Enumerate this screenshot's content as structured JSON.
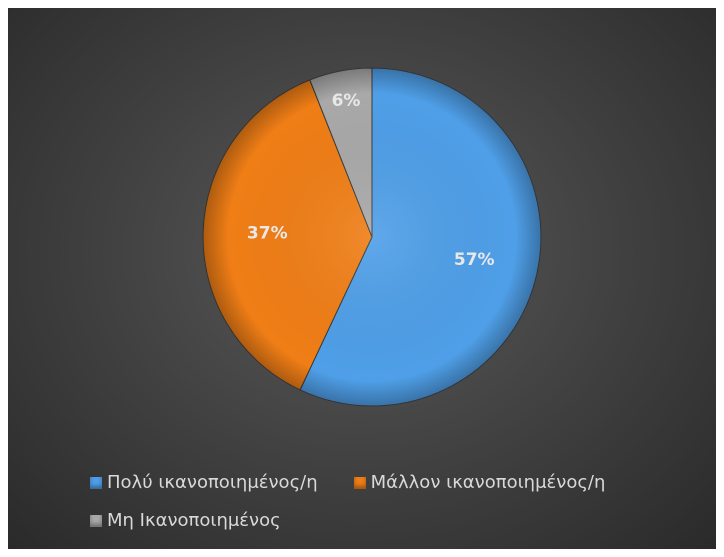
{
  "chart_data": {
    "type": "pie",
    "title": "",
    "legend_position": "bottom",
    "slices": [
      {
        "name": "Πολύ ικανοποιημένος/η",
        "value": 57,
        "label": "57%",
        "color": "#4f9fe8"
      },
      {
        "name": "Μάλλον ικανοποιημένος/η",
        "value": 37,
        "label": "37%",
        "color": "#f07e16"
      },
      {
        "name": "Μη Ικανοποιημένος",
        "value": 6,
        "label": "6%",
        "color": "#a9a9a9"
      }
    ]
  }
}
